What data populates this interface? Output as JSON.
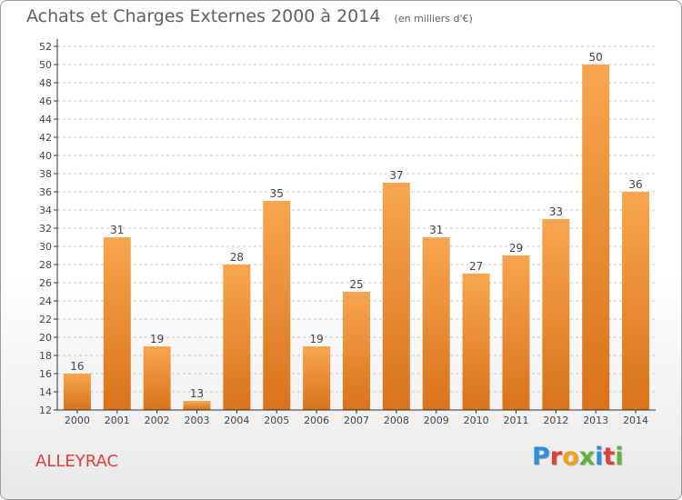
{
  "chart_data": {
    "type": "bar",
    "title": "Achats et Charges Externes 2000 à 2014",
    "unit": "(en milliers d'€)",
    "categories": [
      "2000",
      "2001",
      "2002",
      "2003",
      "2004",
      "2005",
      "2006",
      "2007",
      "2008",
      "2009",
      "2010",
      "2011",
      "2012",
      "2013",
      "2014"
    ],
    "values": [
      16,
      31,
      19,
      13,
      28,
      35,
      19,
      25,
      37,
      31,
      27,
      29,
      33,
      50,
      36
    ],
    "ylim": [
      12,
      52
    ],
    "yticks": [
      "12",
      "14",
      "16",
      "18",
      "20",
      "22",
      "24",
      "26",
      "28",
      "30",
      "32",
      "34",
      "36",
      "38",
      "40",
      "42",
      "44",
      "46",
      "48",
      "50",
      "52"
    ],
    "grid": "horizontal dashed",
    "colors": {
      "bar_top": "#f7a64f",
      "bar_bottom": "#d9731b",
      "grid": "#c8c8c8",
      "axis": "#333333"
    }
  },
  "footer": {
    "commune": "ALLEYRAC",
    "brand": "Proxiti",
    "brand_colors": [
      "#2f8fd6",
      "#e0403a",
      "#f2a21b",
      "#5fb33b",
      "#2f8fd6",
      "#e0403a",
      "#5fb33b"
    ]
  }
}
